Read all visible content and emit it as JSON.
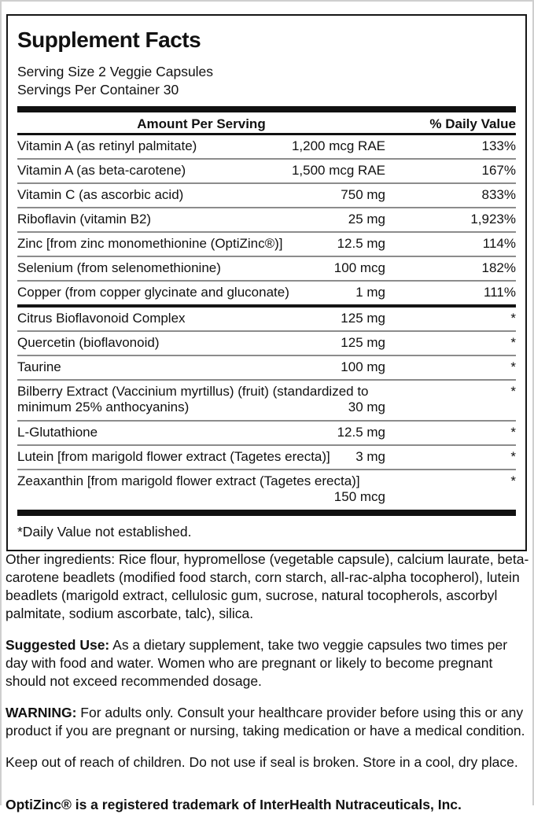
{
  "facts": {
    "title": "Supplement Facts",
    "serving_size": "Serving Size 2 Veggie Capsules",
    "servings_per_container": "Servings Per Container 30",
    "header": {
      "amount": "Amount Per Serving",
      "daily_value": "% Daily Value"
    },
    "rows": [
      {
        "name": "Vitamin A (as retinyl palmitate)",
        "amount": "1,200 mcg RAE",
        "dv": "133%",
        "divider": "none"
      },
      {
        "name": "Vitamin A (as beta-carotene)",
        "amount": "1,500 mcg RAE",
        "dv": "167%",
        "divider": "thin"
      },
      {
        "name": "Vitamin C (as ascorbic acid)",
        "amount": "750 mg",
        "dv": "833%",
        "divider": "thin"
      },
      {
        "name": "Riboflavin (vitamin B2)",
        "amount": "25 mg",
        "dv": "1,923%",
        "divider": "thin"
      },
      {
        "name": "Zinc [from zinc monomethionine (OptiZinc®)]",
        "amount": "12.5 mg",
        "dv": "114%",
        "divider": "thin"
      },
      {
        "name": "Selenium (from selenomethionine)",
        "amount": "100 mcg",
        "dv": "182%",
        "divider": "thin"
      },
      {
        "name": "Copper (from copper glycinate and gluconate)",
        "amount": "1 mg",
        "dv": "111%",
        "divider": "thin"
      },
      {
        "name": "Citrus Bioflavonoid Complex",
        "amount": "125 mg",
        "dv": "*",
        "divider": "medium"
      },
      {
        "name": "Quercetin (bioflavonoid)",
        "amount": "125 mg",
        "dv": "*",
        "divider": "thin"
      },
      {
        "name": "Taurine",
        "amount": "100 mg",
        "dv": "*",
        "divider": "thin"
      },
      {
        "name": "Bilberry Extract (Vaccinium myrtillus) (fruit) (standardized to",
        "name_line2": "minimum 25% anthocyanins)",
        "amount": "30 mg",
        "dv": "*",
        "divider": "thin"
      },
      {
        "name": "L-Glutathione",
        "amount": "12.5 mg",
        "dv": "*",
        "divider": "thin"
      },
      {
        "name": "Lutein [from marigold flower extract (Tagetes erecta)]",
        "amount": "3 mg",
        "dv": "*",
        "divider": "thin"
      },
      {
        "name": "Zeaxanthin [from marigold flower extract (Tagetes erecta)]",
        "name_line2": "",
        "amount": "150 mcg",
        "dv": "*",
        "divider": "thin"
      }
    ],
    "footnote": "*Daily Value not established."
  },
  "body_text": {
    "other_ingredients": "Other ingredients: Rice flour, hypromellose (vegetable capsule), calcium laurate, beta-carotene beadlets (modified food starch, corn starch, all-rac-alpha tocopherol), lutein beadlets (marigold extract, cellulosic gum, sucrose, natural tocopherols, ascorbyl palmitate, sodium ascorbate, talc), silica.",
    "suggested_use_label": "Suggested Use:",
    "suggested_use": "As a dietary supplement, take two veggie capsules two times per day with food and water. Women who are pregnant or likely to become pregnant should not exceed recommended dosage.",
    "warning_label": "WARNING:",
    "warning": "For adults only. Consult your healthcare provider before using this or any product if you are pregnant or nursing, taking medication or have a medical condition.",
    "storage": "Keep out of reach of children. Do not use if seal is broken. Store in a cool, dry place.",
    "trademark": "OptiZinc® is a registered trademark of InterHealth Nutraceuticals, Inc."
  },
  "colors": {
    "text": "#111111",
    "bar": "#111111",
    "thin_divider": "#8c8c8c",
    "box_border": "#161616",
    "page_edge": "#cfcfcf",
    "background": "#ffffff"
  }
}
